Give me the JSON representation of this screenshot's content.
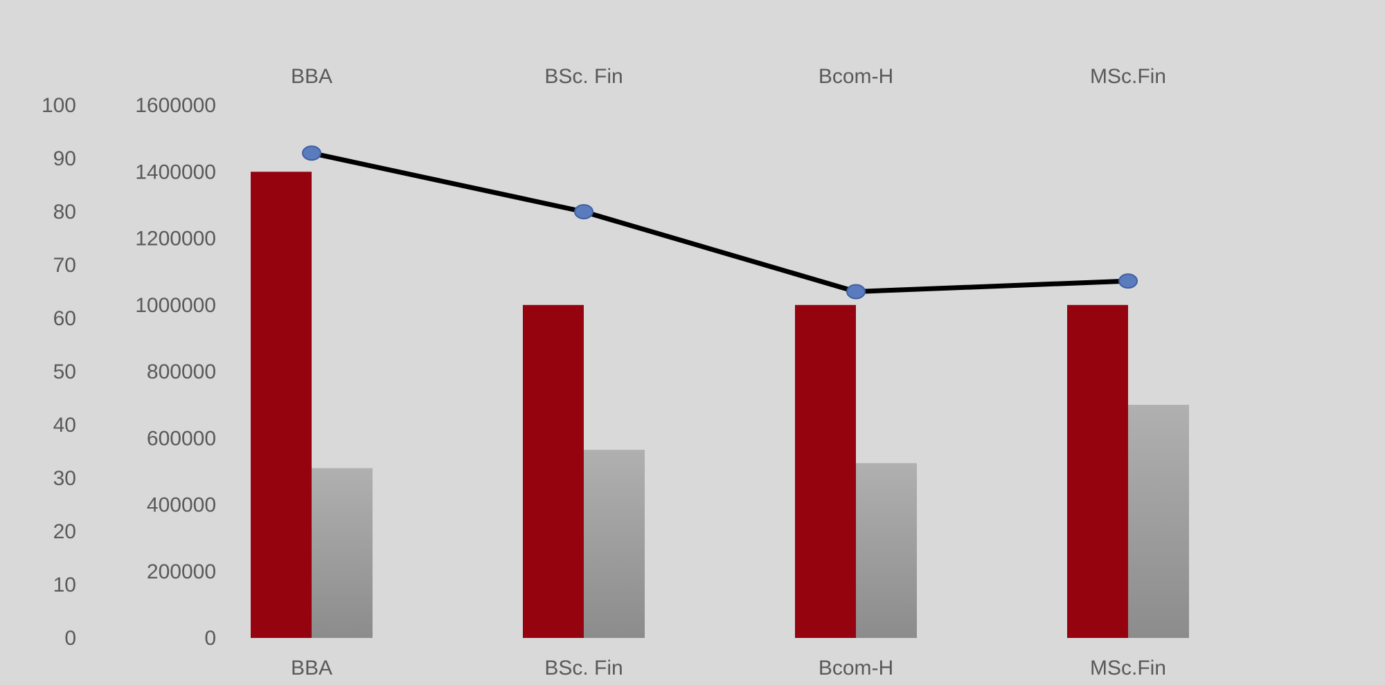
{
  "chart_data": {
    "type": "bar",
    "title": "",
    "categories": [
      "BBA",
      "BSc. Fin",
      "Bcom-H",
      "MSc.Fin"
    ],
    "top_axis_labels": [
      "BBA",
      "BSc. Fin",
      "Bcom-H",
      "MSc.Fin"
    ],
    "series": [
      {
        "type": "bar",
        "axis": "primary",
        "color": "#95040e",
        "values": [
          1400000,
          1000000,
          1000000,
          1000000
        ]
      },
      {
        "type": "bar",
        "axis": "primary",
        "color": "#a6a6a6",
        "values": [
          510000,
          565000,
          525000,
          700000
        ]
      },
      {
        "type": "line",
        "axis": "secondary",
        "color": "#000000",
        "marker_color": "#5b7bbf",
        "values": [
          91,
          80,
          65,
          67
        ]
      }
    ],
    "primary_axis": {
      "range": [
        0,
        1600000
      ],
      "ticks": [
        "0",
        "200000",
        "400000",
        "600000",
        "800000",
        "1000000",
        "1200000",
        "1400000",
        "1600000"
      ]
    },
    "secondary_axis": {
      "range": [
        0,
        100
      ],
      "ticks": [
        "0",
        "10",
        "20",
        "30",
        "40",
        "50",
        "60",
        "70",
        "80",
        "90",
        "100"
      ]
    },
    "grid": false,
    "legend": "none",
    "background": "#d9d9d9"
  }
}
